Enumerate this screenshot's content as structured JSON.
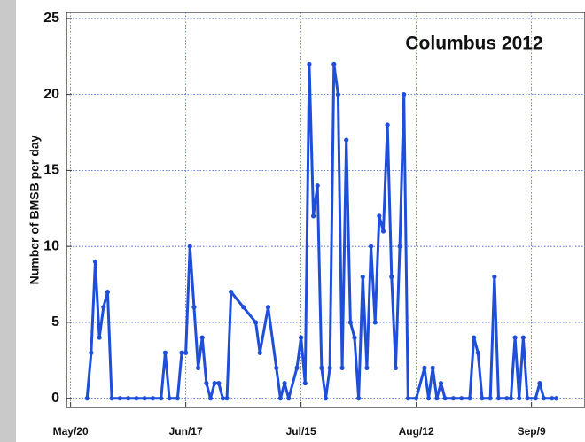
{
  "chart_data": {
    "type": "line",
    "title": "Columbus 2012",
    "y_label": "Number of BMSB per day",
    "x": [
      4,
      5,
      6,
      7,
      8,
      9,
      10,
      12,
      14,
      16,
      18,
      20,
      22,
      23,
      24,
      26,
      27,
      28,
      29,
      30,
      31,
      32,
      33,
      34,
      35,
      36,
      37,
      38,
      39,
      42,
      45,
      46,
      48,
      50,
      51,
      52,
      53,
      55,
      56,
      57,
      58,
      59,
      60,
      61,
      62,
      63,
      64,
      65,
      66,
      67,
      68,
      69,
      70,
      71,
      72,
      73,
      74,
      75,
      76,
      77,
      78,
      79,
      80,
      81,
      82,
      84,
      86,
      87,
      88,
      89,
      90,
      91,
      93,
      95,
      97,
      98,
      99,
      100,
      102,
      103,
      104,
      106,
      107,
      108,
      109,
      110,
      111,
      113,
      114,
      115,
      117,
      118
    ],
    "series": [
      {
        "name": "BMSB",
        "color": "#1f4fd8",
        "values": [
          0,
          3,
          9,
          4,
          6,
          7,
          0,
          0,
          0,
          0,
          0,
          0,
          0,
          3,
          0,
          0,
          3,
          3,
          10,
          6,
          2,
          4,
          1,
          0,
          1,
          1,
          0,
          0,
          7,
          6,
          5,
          3,
          6,
          2,
          0,
          1,
          0,
          2,
          4,
          1,
          22,
          12,
          14,
          2,
          0,
          2,
          22,
          20,
          2,
          17,
          5,
          4,
          0,
          8,
          2,
          10,
          5,
          12,
          11,
          18,
          8,
          2,
          10,
          20,
          0,
          0,
          2,
          0,
          2,
          0,
          1,
          0,
          0,
          0,
          0,
          4,
          3,
          0,
          0,
          8,
          0,
          0,
          0,
          4,
          0,
          4,
          0,
          0,
          1,
          0,
          0,
          0
        ]
      }
    ],
    "xlim": [
      -1,
      125
    ],
    "xticks": [
      {
        "value": 0,
        "label": "May/20"
      },
      {
        "value": 28,
        "label": "Jun/17"
      },
      {
        "value": 56,
        "label": "Jul/15"
      },
      {
        "value": 84,
        "label": "Aug/12"
      },
      {
        "value": 112,
        "label": "Sep/9"
      }
    ],
    "ylim": [
      -0.6,
      25.4
    ],
    "yticks": [
      0,
      5,
      10,
      15,
      20,
      25
    ],
    "grid": true
  }
}
